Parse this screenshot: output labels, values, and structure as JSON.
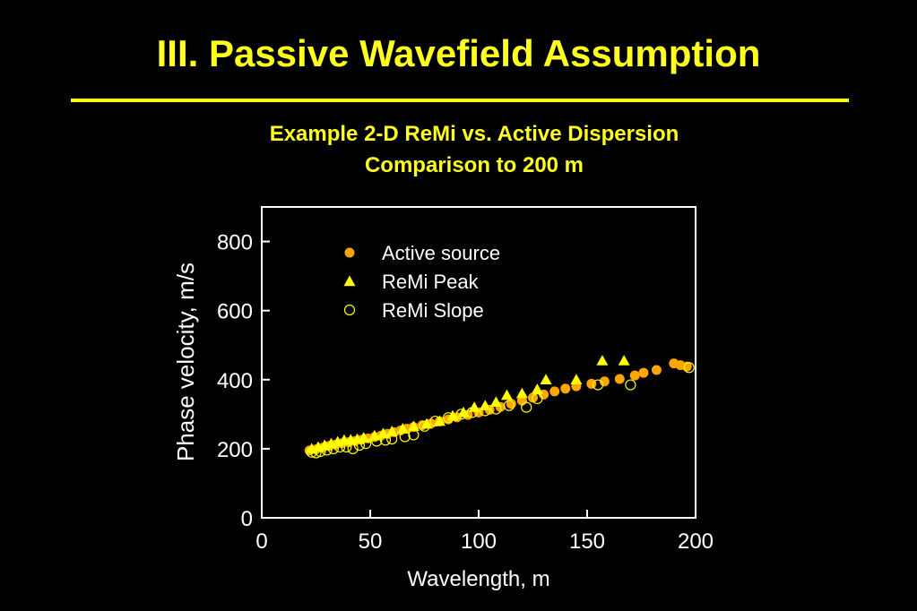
{
  "slide": {
    "title": "III. Passive Wavefield Assumption",
    "subtitle_line1": "Example 2-D ReMi vs. Active Dispersion",
    "subtitle_line2": "Comparison to 200 m"
  },
  "colors": {
    "background": "#000000",
    "title": "#ffff1f",
    "axes": "#ffffff",
    "active": "#ffa500",
    "remi_peak": "#ffff00",
    "remi_slope": "#ffff00"
  },
  "chart_data": {
    "type": "scatter",
    "xlabel": "Wavelength, m",
    "ylabel": "Phase velocity, m/s",
    "xlim": [
      0,
      200
    ],
    "ylim": [
      0,
      900
    ],
    "xticks": [
      0,
      50,
      100,
      150,
      200
    ],
    "yticks": [
      0,
      200,
      400,
      600,
      800
    ],
    "grid": false,
    "legend_position": "top-left",
    "series": [
      {
        "name": "Active source",
        "marker": "filled-circle",
        "points": [
          [
            22,
            195
          ],
          [
            25,
            198
          ],
          [
            28,
            203
          ],
          [
            31,
            208
          ],
          [
            34,
            212
          ],
          [
            37,
            216
          ],
          [
            40,
            219
          ],
          [
            43,
            222
          ],
          [
            46,
            226
          ],
          [
            49,
            230
          ],
          [
            52,
            234
          ],
          [
            55,
            238
          ],
          [
            58,
            243
          ],
          [
            61,
            248
          ],
          [
            64,
            253
          ],
          [
            67,
            258
          ],
          [
            70,
            263
          ],
          [
            74,
            268
          ],
          [
            78,
            273
          ],
          [
            82,
            279
          ],
          [
            86,
            285
          ],
          [
            90,
            291
          ],
          [
            95,
            298
          ],
          [
            100,
            305
          ],
          [
            105,
            313
          ],
          [
            110,
            321
          ],
          [
            115,
            330
          ],
          [
            120,
            339
          ],
          [
            125,
            348
          ],
          [
            130,
            357
          ],
          [
            135,
            366
          ],
          [
            140,
            374
          ],
          [
            145,
            381
          ],
          [
            152,
            388
          ],
          [
            158,
            395
          ],
          [
            165,
            402
          ],
          [
            172,
            412
          ],
          [
            176,
            420
          ],
          [
            182,
            428
          ],
          [
            190,
            447
          ],
          [
            193,
            442
          ],
          [
            196,
            438
          ]
        ]
      },
      {
        "name": "ReMi Peak",
        "marker": "filled-triangle",
        "points": [
          [
            23,
            200
          ],
          [
            26,
            205
          ],
          [
            29,
            210
          ],
          [
            32,
            215
          ],
          [
            35,
            220
          ],
          [
            38,
            225
          ],
          [
            41,
            226
          ],
          [
            44,
            228
          ],
          [
            47,
            232
          ],
          [
            52,
            238
          ],
          [
            56,
            244
          ],
          [
            60,
            250
          ],
          [
            65,
            258
          ],
          [
            70,
            265
          ],
          [
            76,
            272
          ],
          [
            82,
            280
          ],
          [
            88,
            295
          ],
          [
            93,
            305
          ],
          [
            98,
            320
          ],
          [
            103,
            325
          ],
          [
            108,
            335
          ],
          [
            113,
            355
          ],
          [
            120,
            360
          ],
          [
            127,
            372
          ],
          [
            131,
            400
          ],
          [
            145,
            400
          ],
          [
            157,
            455
          ],
          [
            167,
            455
          ]
        ]
      },
      {
        "name": "ReMi Slope",
        "marker": "open-circle",
        "points": [
          [
            23,
            190
          ],
          [
            25,
            188
          ],
          [
            27,
            192
          ],
          [
            30,
            196
          ],
          [
            33,
            200
          ],
          [
            36,
            205
          ],
          [
            39,
            205
          ],
          [
            42,
            200
          ],
          [
            45,
            210
          ],
          [
            48,
            215
          ],
          [
            53,
            222
          ],
          [
            57,
            225
          ],
          [
            60,
            228
          ],
          [
            66,
            235
          ],
          [
            70,
            240
          ],
          [
            75,
            265
          ],
          [
            80,
            280
          ],
          [
            86,
            290
          ],
          [
            92,
            300
          ],
          [
            97,
            305
          ],
          [
            103,
            310
          ],
          [
            108,
            315
          ],
          [
            114,
            325
          ],
          [
            122,
            320
          ],
          [
            127,
            345
          ],
          [
            155,
            385
          ],
          [
            170,
            385
          ],
          [
            197,
            435
          ]
        ]
      }
    ]
  }
}
